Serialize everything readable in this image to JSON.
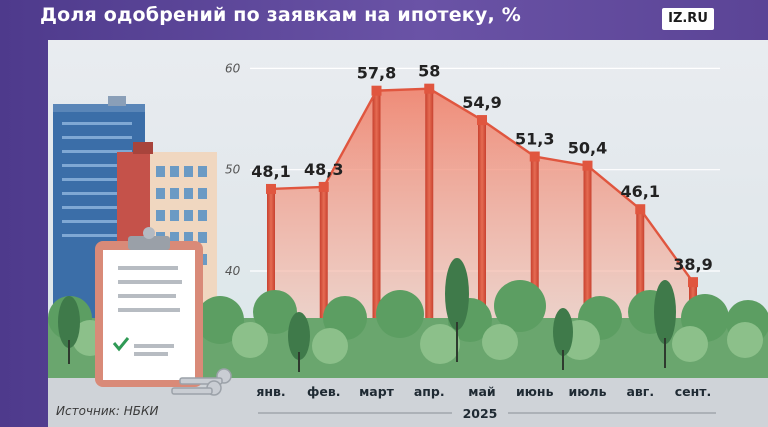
{
  "header": {
    "title": "Доля одобрений по заявкам на ипотеку, %",
    "logo_text": "IZ.RU"
  },
  "footer": {
    "source": "Источник: НБКИ",
    "year": "2025"
  },
  "colors": {
    "background": "#5b4496",
    "line": "#e0563f",
    "area_top": "#f07b63",
    "area_bottom": "#f5c9bb",
    "bars": "#d9503c",
    "trees": "#5c9e62"
  },
  "chart_data": {
    "type": "area",
    "categories": [
      "янв.",
      "фев.",
      "март",
      "апр.",
      "май",
      "июнь",
      "июль",
      "авг.",
      "сент."
    ],
    "values": [
      48.1,
      48.3,
      57.8,
      58,
      54.9,
      51.3,
      50.4,
      46.1,
      38.9
    ],
    "value_labels": [
      "48,1",
      "48,3",
      "57,8",
      "58",
      "54,9",
      "51,3",
      "50,4",
      "46,1",
      "38,9"
    ],
    "y_ticks": [
      60,
      50,
      40
    ],
    "ylim": [
      33,
      62
    ],
    "grid": true
  }
}
